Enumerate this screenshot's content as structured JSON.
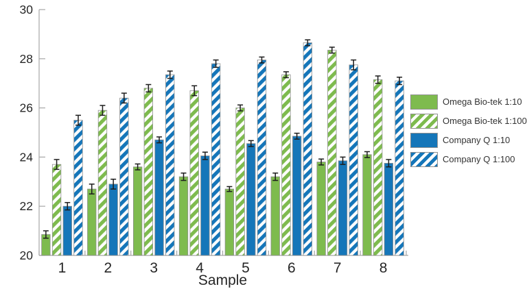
{
  "chart_data": {
    "type": "bar",
    "title": "",
    "xlabel": "Sample",
    "ylabel": "",
    "categories": [
      "1",
      "2",
      "3",
      "4",
      "5",
      "6",
      "7",
      "8"
    ],
    "ylim": [
      20,
      30
    ],
    "yticks": [
      20,
      22,
      24,
      26,
      28,
      30
    ],
    "grid": false,
    "legend_position": "right",
    "series": [
      {
        "name": "Omega Bio-tek 1:10",
        "style": "solid",
        "color": "#7EBB4E",
        "values": [
          20.85,
          22.7,
          23.6,
          23.2,
          22.7,
          23.2,
          23.8,
          24.1
        ],
        "errors": [
          0.15,
          0.2,
          0.12,
          0.15,
          0.1,
          0.15,
          0.12,
          0.12
        ]
      },
      {
        "name": "Omega Bio-tek 1:100",
        "style": "hatched",
        "color": "#7EBB4E",
        "values": [
          23.7,
          25.9,
          26.8,
          26.7,
          26.0,
          27.35,
          28.35,
          27.15
        ],
        "errors": [
          0.2,
          0.2,
          0.15,
          0.2,
          0.12,
          0.12,
          0.12,
          0.15
        ]
      },
      {
        "name": "Company Q 1:10",
        "style": "solid",
        "color": "#1576B9",
        "values": [
          22.0,
          22.9,
          24.7,
          24.05,
          24.55,
          24.85,
          23.85,
          23.75
        ],
        "errors": [
          0.15,
          0.2,
          0.12,
          0.15,
          0.12,
          0.12,
          0.15,
          0.15
        ]
      },
      {
        "name": "Company Q 1:100",
        "style": "hatched",
        "color": "#1576B9",
        "values": [
          25.5,
          26.4,
          27.35,
          27.8,
          27.95,
          28.65,
          27.75,
          27.1
        ],
        "errors": [
          0.2,
          0.2,
          0.15,
          0.15,
          0.12,
          0.12,
          0.2,
          0.15
        ]
      }
    ]
  },
  "styles": {
    "bar_edge": "#8f8f8f",
    "axis_color": "#a6a6a6",
    "error_color": "#1c1c1c",
    "text_color": "#262626",
    "background": "#ffffff"
  }
}
